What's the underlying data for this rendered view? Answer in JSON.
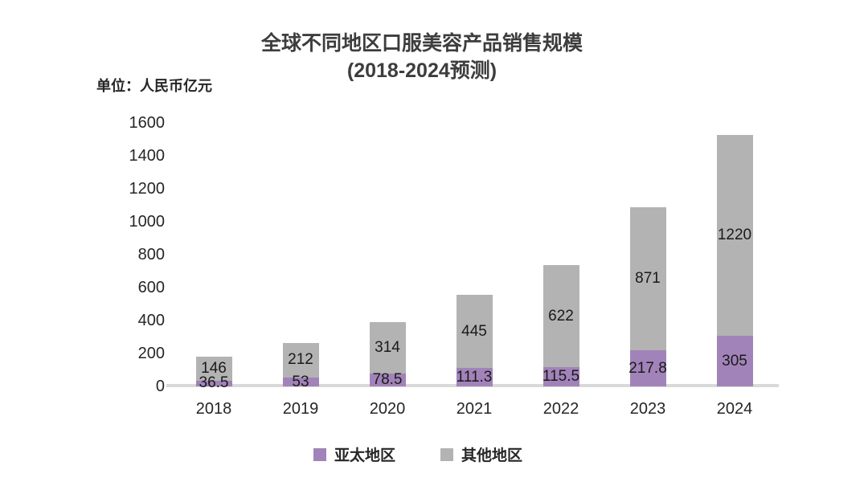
{
  "page": {
    "background": "#FFFFFF"
  },
  "chart_data": {
    "type": "bar",
    "stacked": true,
    "title": "全球不同地区口服美容产品销售规模",
    "subtitle": "(2018-2024预测)",
    "unit_label": "单位：人民币亿元",
    "categories": [
      "2018",
      "2019",
      "2020",
      "2021",
      "2022",
      "2023",
      "2024"
    ],
    "series": [
      {
        "name": "亚太地区",
        "color": "#A183B9",
        "values": [
          36.5,
          53,
          78.5,
          111.3,
          115.5,
          217.8,
          305
        ]
      },
      {
        "name": "其他地区",
        "color": "#B3B3B3",
        "values": [
          146,
          212,
          314,
          445,
          622,
          871,
          1220
        ]
      }
    ],
    "ylim": [
      0,
      1600
    ],
    "yticks": [
      0,
      200,
      400,
      600,
      800,
      1000,
      1200,
      1400,
      1600
    ],
    "grid": false,
    "legend_position": "bottom",
    "axis_line_color": "#D9D9D9",
    "label_color": "#1A1A1A",
    "text_color": "#262626",
    "title_color": "#3D3D3D"
  }
}
